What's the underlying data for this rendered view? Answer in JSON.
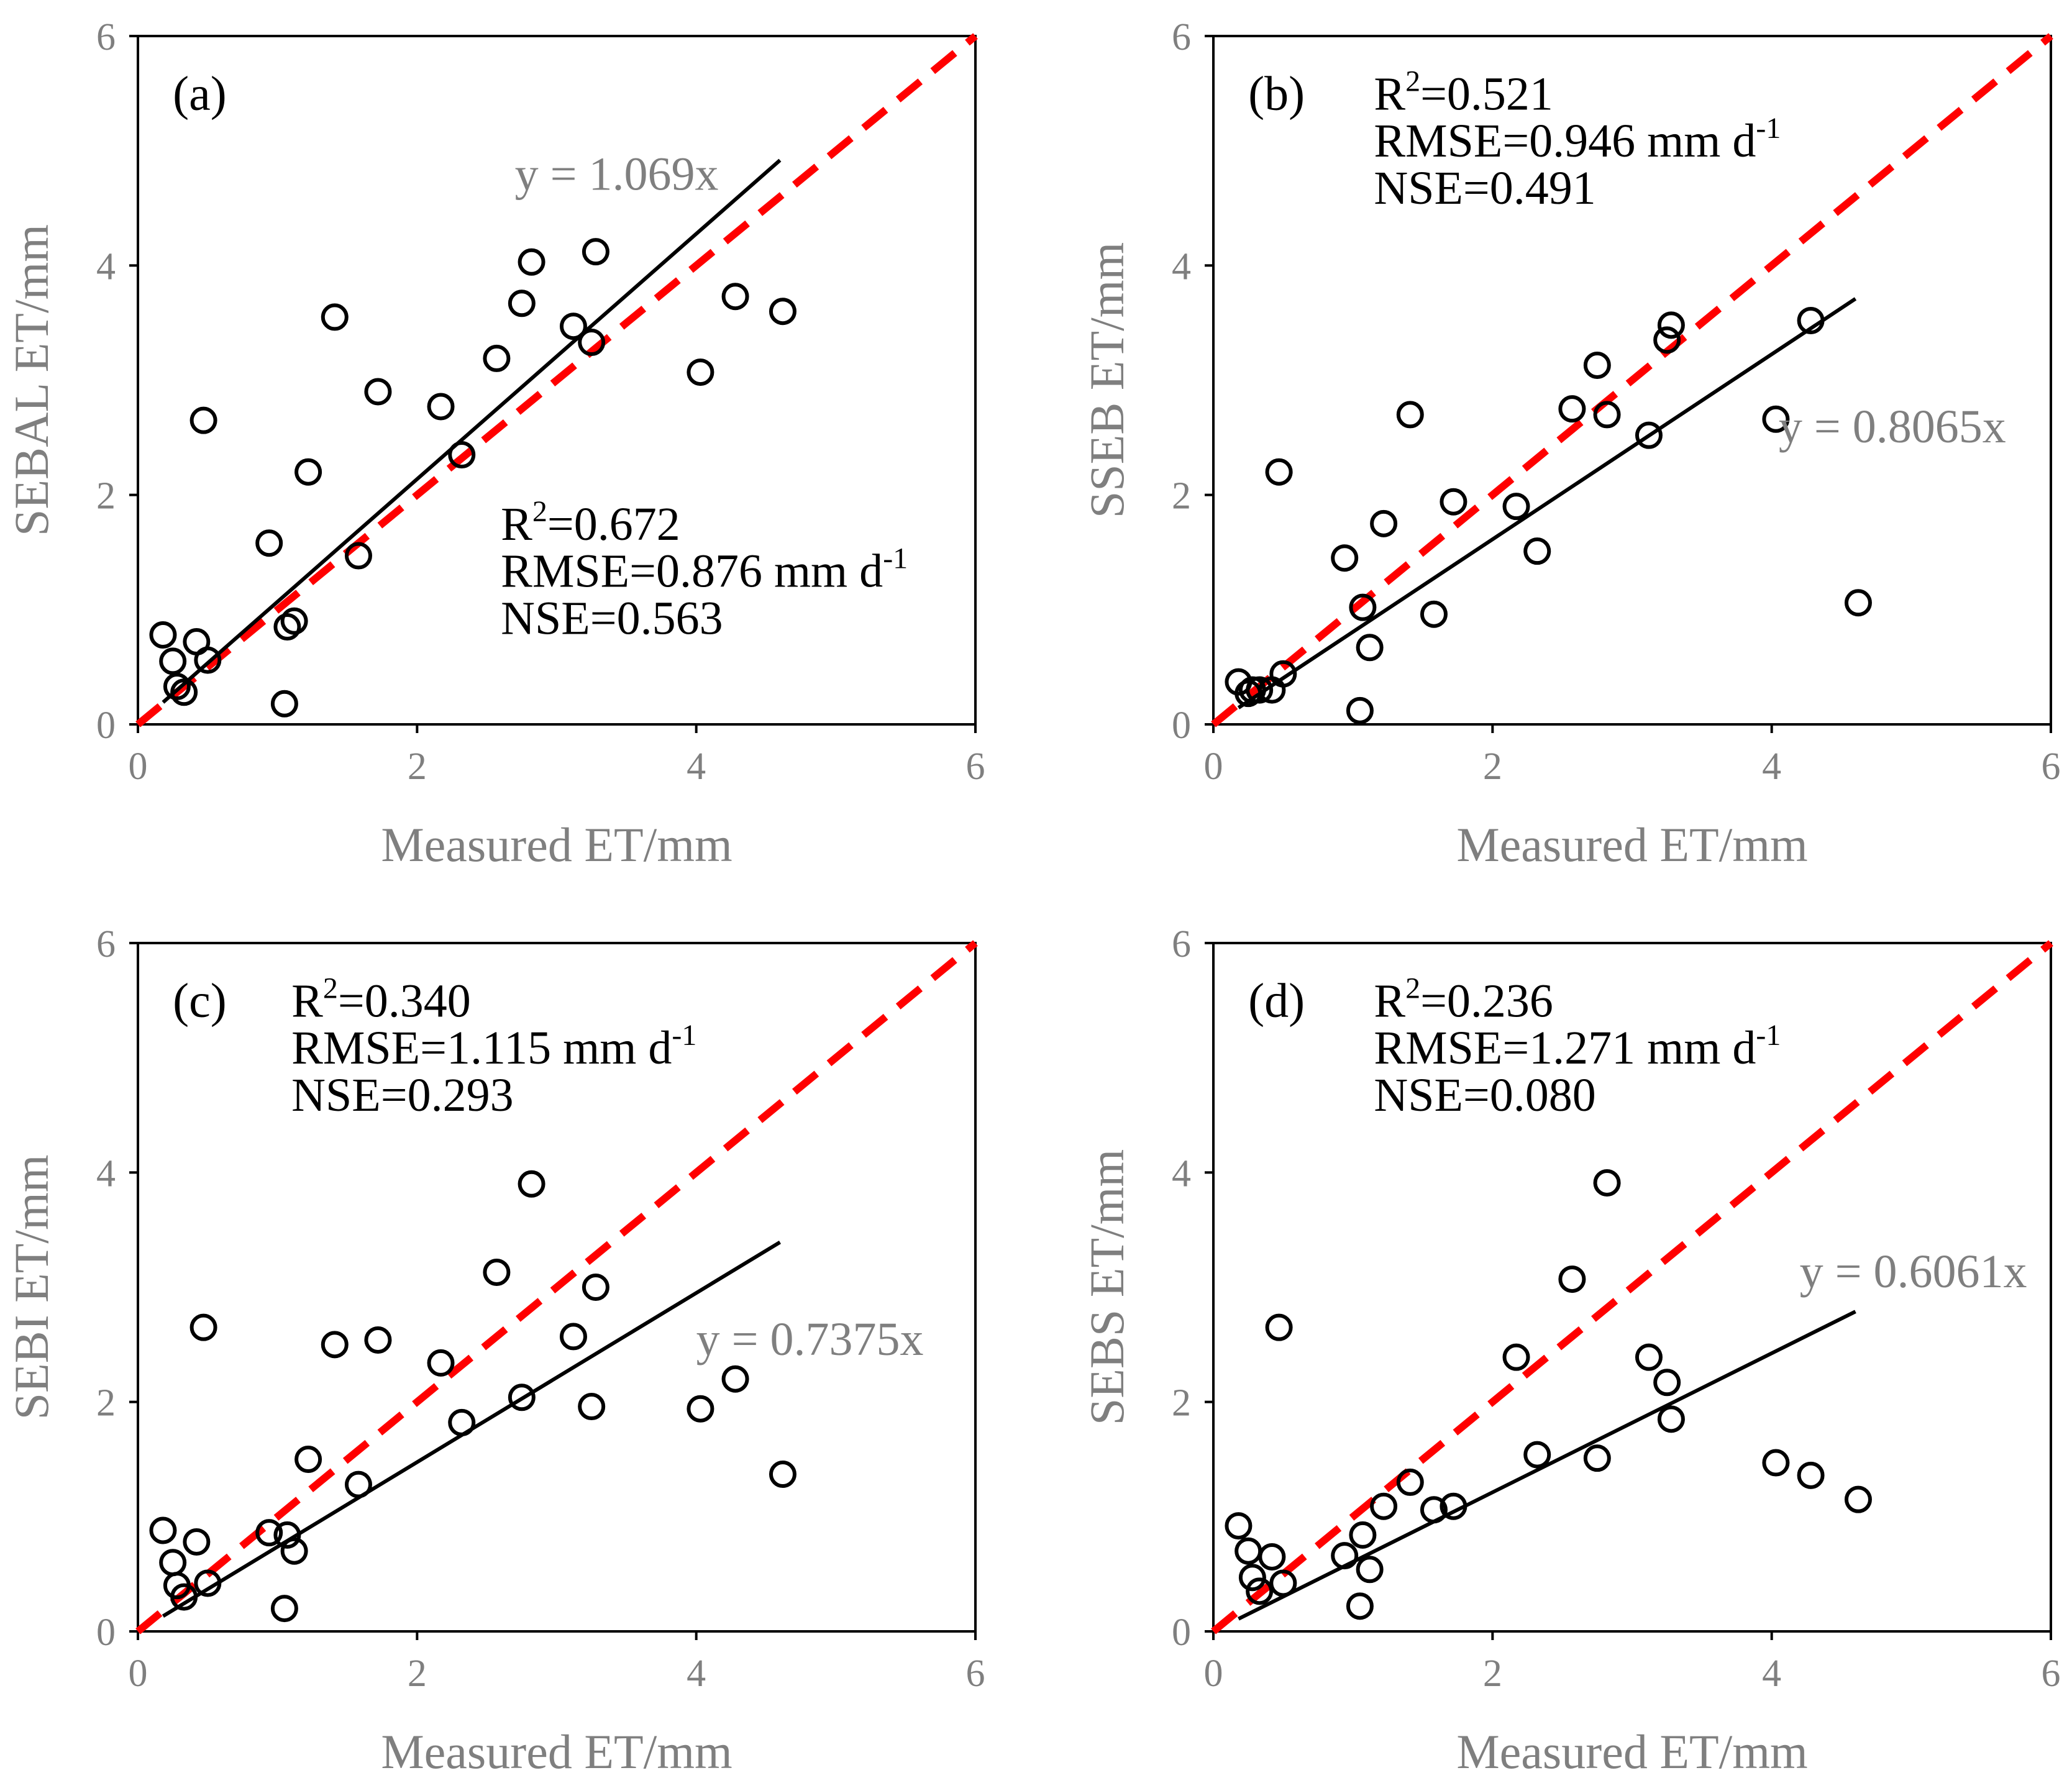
{
  "figure": {
    "colors": {
      "axis": "#000000",
      "tick_label": "#7f7f7f",
      "fit_line": "#000000",
      "one_to_one_line": "#ff0000",
      "marker": "#000000"
    }
  },
  "chart_data": [
    {
      "type": "scatter",
      "panel_label": "(a)",
      "xlabel": "Measured ET/mm",
      "ylabel": "SEBAL ET/mm",
      "xlim": [
        0,
        6
      ],
      "ylim": [
        0,
        6
      ],
      "xticks": [
        "0",
        "2",
        "4",
        "6"
      ],
      "yticks": [
        "0",
        "2",
        "4",
        "6"
      ],
      "equation": "y = 1.069x",
      "slope": 1.069,
      "fit_x_range": [
        0.18,
        4.6
      ],
      "stats": {
        "r2_prefix": "R",
        "r2_sup": "2",
        "r2_value": "=0.672",
        "rmse": "RMSE=0.876 mm d",
        "rmse_sup": "-1",
        "nse": "NSE=0.563"
      },
      "points": [
        [
          0.18,
          0.78
        ],
        [
          0.25,
          0.55
        ],
        [
          0.28,
          0.33
        ],
        [
          0.33,
          0.28
        ],
        [
          0.42,
          0.72
        ],
        [
          0.47,
          2.65
        ],
        [
          0.5,
          0.56
        ],
        [
          0.94,
          1.58
        ],
        [
          1.07,
          0.85
        ],
        [
          1.12,
          0.9
        ],
        [
          1.05,
          0.18
        ],
        [
          1.22,
          2.2
        ],
        [
          1.41,
          3.55
        ],
        [
          1.58,
          1.47
        ],
        [
          1.72,
          2.9
        ],
        [
          2.17,
          2.77
        ],
        [
          2.32,
          2.35
        ],
        [
          2.57,
          3.19
        ],
        [
          2.75,
          3.67
        ],
        [
          2.82,
          4.03
        ],
        [
          3.12,
          3.47
        ],
        [
          3.25,
          3.33
        ],
        [
          3.28,
          4.12
        ],
        [
          4.03,
          3.07
        ],
        [
          4.28,
          3.73
        ],
        [
          4.62,
          3.6
        ]
      ]
    },
    {
      "type": "scatter",
      "panel_label": "(b)",
      "xlabel": "Measured ET/mm",
      "ylabel": "SSEB ET/mm",
      "xlim": [
        0,
        6
      ],
      "ylim": [
        0,
        6
      ],
      "xticks": [
        "0",
        "2",
        "4",
        "6"
      ],
      "yticks": [
        "0",
        "2",
        "4",
        "6"
      ],
      "equation": "y = 0.8065x",
      "slope": 0.8065,
      "fit_x_range": [
        0.18,
        4.6
      ],
      "stats": {
        "r2_prefix": "R",
        "r2_sup": "2",
        "r2_value": "=0.521",
        "rmse": "RMSE=0.946 mm d",
        "rmse_sup": "-1",
        "nse": "NSE=0.491"
      },
      "points": [
        [
          0.18,
          0.37
        ],
        [
          0.25,
          0.27
        ],
        [
          0.28,
          0.3
        ],
        [
          0.33,
          0.3
        ],
        [
          0.42,
          0.3
        ],
        [
          0.47,
          2.2
        ],
        [
          0.5,
          0.44
        ],
        [
          0.94,
          1.45
        ],
        [
          1.07,
          1.02
        ],
        [
          1.12,
          0.67
        ],
        [
          1.05,
          0.12
        ],
        [
          1.22,
          1.75
        ],
        [
          1.41,
          2.7
        ],
        [
          1.58,
          0.96
        ],
        [
          1.72,
          1.94
        ],
        [
          2.17,
          1.9
        ],
        [
          2.32,
          1.51
        ],
        [
          2.57,
          2.75
        ],
        [
          2.75,
          3.13
        ],
        [
          2.82,
          2.7
        ],
        [
          3.12,
          2.52
        ],
        [
          3.25,
          3.35
        ],
        [
          3.28,
          3.48
        ],
        [
          4.03,
          2.66
        ],
        [
          4.28,
          3.52
        ],
        [
          4.62,
          1.06
        ]
      ]
    },
    {
      "type": "scatter",
      "panel_label": "(c)",
      "xlabel": "Measured ET/mm",
      "ylabel": "SEBI ET/mm",
      "xlim": [
        0,
        6
      ],
      "ylim": [
        0,
        6
      ],
      "xticks": [
        "0",
        "2",
        "4",
        "6"
      ],
      "yticks": [
        "0",
        "2",
        "4",
        "6"
      ],
      "equation": "y = 0.7375x",
      "slope": 0.7375,
      "fit_x_range": [
        0.18,
        4.6
      ],
      "stats": {
        "r2_prefix": "R",
        "r2_sup": "2",
        "r2_value": "=0.340",
        "rmse": "RMSE=1.115 mm d",
        "rmse_sup": "-1",
        "nse": "NSE=0.293"
      },
      "points": [
        [
          0.18,
          0.88
        ],
        [
          0.25,
          0.6
        ],
        [
          0.28,
          0.4
        ],
        [
          0.33,
          0.3
        ],
        [
          0.42,
          0.78
        ],
        [
          0.47,
          2.65
        ],
        [
          0.5,
          0.42
        ],
        [
          0.94,
          0.86
        ],
        [
          1.07,
          0.84
        ],
        [
          1.12,
          0.7
        ],
        [
          1.05,
          0.2
        ],
        [
          1.22,
          1.5
        ],
        [
          1.41,
          2.5
        ],
        [
          1.58,
          1.28
        ],
        [
          1.72,
          2.54
        ],
        [
          2.17,
          2.34
        ],
        [
          2.32,
          1.82
        ],
        [
          2.57,
          3.13
        ],
        [
          2.75,
          2.04
        ],
        [
          2.82,
          3.9
        ],
        [
          3.12,
          2.57
        ],
        [
          3.25,
          1.96
        ],
        [
          3.28,
          3.0
        ],
        [
          4.03,
          1.94
        ],
        [
          4.28,
          2.2
        ],
        [
          4.62,
          1.37
        ]
      ]
    },
    {
      "type": "scatter",
      "panel_label": "(d)",
      "xlabel": "Measured ET/mm",
      "ylabel": "SEBS ET/mm",
      "xlim": [
        0,
        6
      ],
      "ylim": [
        0,
        6
      ],
      "xticks": [
        "0",
        "2",
        "4",
        "6"
      ],
      "yticks": [
        "0",
        "2",
        "4",
        "6"
      ],
      "equation": "y = 0.6061x",
      "slope": 0.6061,
      "fit_x_range": [
        0.18,
        4.6
      ],
      "stats": {
        "r2_prefix": "R",
        "r2_sup": "2",
        "r2_value": "=0.236",
        "rmse": "RMSE=1.271 mm d",
        "rmse_sup": "-1",
        "nse": "NSE=0.080"
      },
      "points": [
        [
          0.18,
          0.92
        ],
        [
          0.25,
          0.7
        ],
        [
          0.28,
          0.47
        ],
        [
          0.33,
          0.35
        ],
        [
          0.42,
          0.65
        ],
        [
          0.47,
          2.65
        ],
        [
          0.5,
          0.42
        ],
        [
          0.94,
          0.66
        ],
        [
          1.07,
          0.84
        ],
        [
          1.12,
          0.54
        ],
        [
          1.05,
          0.22
        ],
        [
          1.22,
          1.09
        ],
        [
          1.41,
          1.3
        ],
        [
          1.58,
          1.06
        ],
        [
          1.72,
          1.09
        ],
        [
          2.17,
          2.39
        ],
        [
          2.32,
          1.54
        ],
        [
          2.57,
          3.07
        ],
        [
          2.75,
          1.51
        ],
        [
          2.82,
          3.91
        ],
        [
          3.12,
          2.39
        ],
        [
          3.25,
          2.17
        ],
        [
          3.28,
          1.85
        ],
        [
          4.03,
          1.47
        ],
        [
          4.28,
          1.36
        ],
        [
          4.62,
          1.15
        ]
      ]
    }
  ]
}
